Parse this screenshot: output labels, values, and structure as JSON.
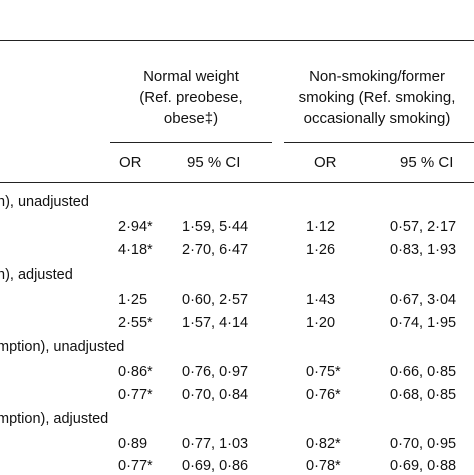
{
  "header": {
    "group1_lines": [
      "Normal weight",
      "(Ref. preobese,",
      "obese‡)"
    ],
    "group2_lines": [
      "Non-smoking/former",
      "smoking (Ref. smoking,",
      "occasionally smoking)"
    ],
    "col_or": "OR",
    "col_ci": "95 % CI"
  },
  "sections": [
    {
      "label": "n), unadjusted",
      "rows": [
        {
          "or1": "2·94*",
          "ci1": "1·59, 5·44",
          "or2": "1·12",
          "ci2": "0·57, 2·17"
        },
        {
          "or1": "4·18*",
          "ci1": "2·70, 6·47",
          "or2": "1·26",
          "ci2": "0·83, 1·93"
        }
      ]
    },
    {
      "label": "n), adjusted",
      "rows": [
        {
          "or1": "1·25",
          "ci1": "0·60, 2·57",
          "or2": "1·43",
          "ci2": "0·67, 3·04"
        },
        {
          "or1": "2·55*",
          "ci1": "1·57, 4·14",
          "or2": "1·20",
          "ci2": "0·74, 1·95"
        }
      ]
    },
    {
      "label": "mption), unadjusted",
      "rows": [
        {
          "or1": "0·86*",
          "ci1": "0·76, 0·97",
          "or2": "0·75*",
          "ci2": "0·66, 0·85"
        },
        {
          "or1": "0·77*",
          "ci1": "0·70, 0·84",
          "or2": "0·76*",
          "ci2": "0·68, 0·85"
        }
      ]
    },
    {
      "label": "mption), adjusted",
      "rows": [
        {
          "or1": "0·89",
          "ci1": "0·77, 1·03",
          "or2": "0·82*",
          "ci2": "0·70, 0·95"
        },
        {
          "or1": "0·77*",
          "ci1": "0·69, 0·86",
          "or2": "0·78*",
          "ci2": "0·69, 0·88"
        }
      ]
    }
  ]
}
